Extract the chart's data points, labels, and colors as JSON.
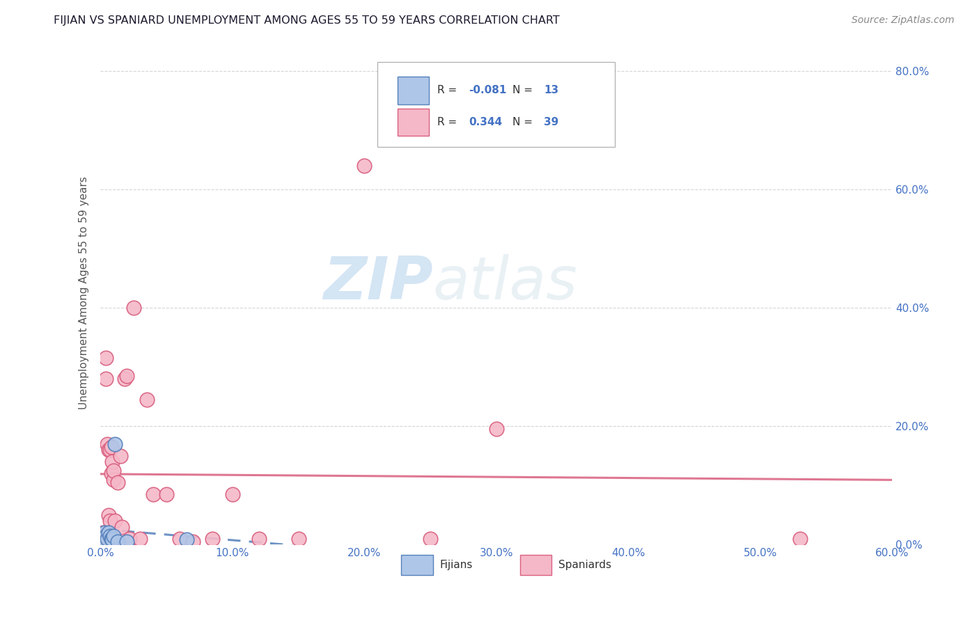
{
  "title": "FIJIAN VS SPANIARD UNEMPLOYMENT AMONG AGES 55 TO 59 YEARS CORRELATION CHART",
  "source": "Source: ZipAtlas.com",
  "ylabel": "Unemployment Among Ages 55 to 59 years",
  "fijian_color": "#aec6e8",
  "fijian_edge_color": "#5580bb",
  "spaniard_color": "#f5b8c8",
  "spaniard_edge_color": "#d95f7f",
  "fijian_R": -0.081,
  "fijian_N": 13,
  "spaniard_R": 0.344,
  "spaniard_N": 39,
  "xlim": [
    0.0,
    0.6
  ],
  "ylim": [
    0.0,
    0.85
  ],
  "xticks": [
    0.0,
    0.1,
    0.2,
    0.3,
    0.4,
    0.5,
    0.6
  ],
  "yticks": [
    0.0,
    0.2,
    0.4,
    0.6,
    0.8
  ],
  "xtick_labels": [
    "0.0%",
    "10.0%",
    "20.0%",
    "30.0%",
    "40.0%",
    "50.0%",
    "60.0%"
  ],
  "ytick_labels": [
    "0.0%",
    "20.0%",
    "40.0%",
    "60.0%",
    "80.0%"
  ],
  "watermark_zip": "ZIP",
  "watermark_atlas": "atlas",
  "fijian_x": [
    0.001,
    0.003,
    0.004,
    0.005,
    0.006,
    0.007,
    0.008,
    0.009,
    0.01,
    0.011,
    0.013,
    0.02,
    0.065
  ],
  "fijian_y": [
    0.01,
    0.02,
    0.015,
    0.01,
    0.02,
    0.015,
    0.01,
    0.008,
    0.015,
    0.17,
    0.005,
    0.005,
    0.008
  ],
  "spaniard_x": [
    0.001,
    0.002,
    0.003,
    0.004,
    0.004,
    0.005,
    0.005,
    0.006,
    0.006,
    0.007,
    0.007,
    0.008,
    0.008,
    0.009,
    0.01,
    0.01,
    0.011,
    0.012,
    0.013,
    0.015,
    0.016,
    0.018,
    0.02,
    0.022,
    0.025,
    0.03,
    0.035,
    0.04,
    0.05,
    0.06,
    0.07,
    0.085,
    0.1,
    0.12,
    0.15,
    0.2,
    0.25,
    0.3,
    0.53
  ],
  "spaniard_y": [
    0.015,
    0.02,
    0.01,
    0.28,
    0.315,
    0.02,
    0.17,
    0.05,
    0.16,
    0.04,
    0.16,
    0.12,
    0.165,
    0.14,
    0.11,
    0.125,
    0.04,
    0.005,
    0.105,
    0.15,
    0.03,
    0.28,
    0.285,
    0.01,
    0.4,
    0.01,
    0.245,
    0.085,
    0.085,
    0.01,
    0.005,
    0.01,
    0.085,
    0.01,
    0.01,
    0.64,
    0.01,
    0.195,
    0.01
  ],
  "title_color": "#1a1a2e",
  "axis_label_color": "#555555",
  "tick_color": "#4472c4",
  "grid_color": "#d0d0d0",
  "legend_color": "#4472c4",
  "watermark_zip_color": "#b8d4ed",
  "watermark_atlas_color": "#c8dce8"
}
